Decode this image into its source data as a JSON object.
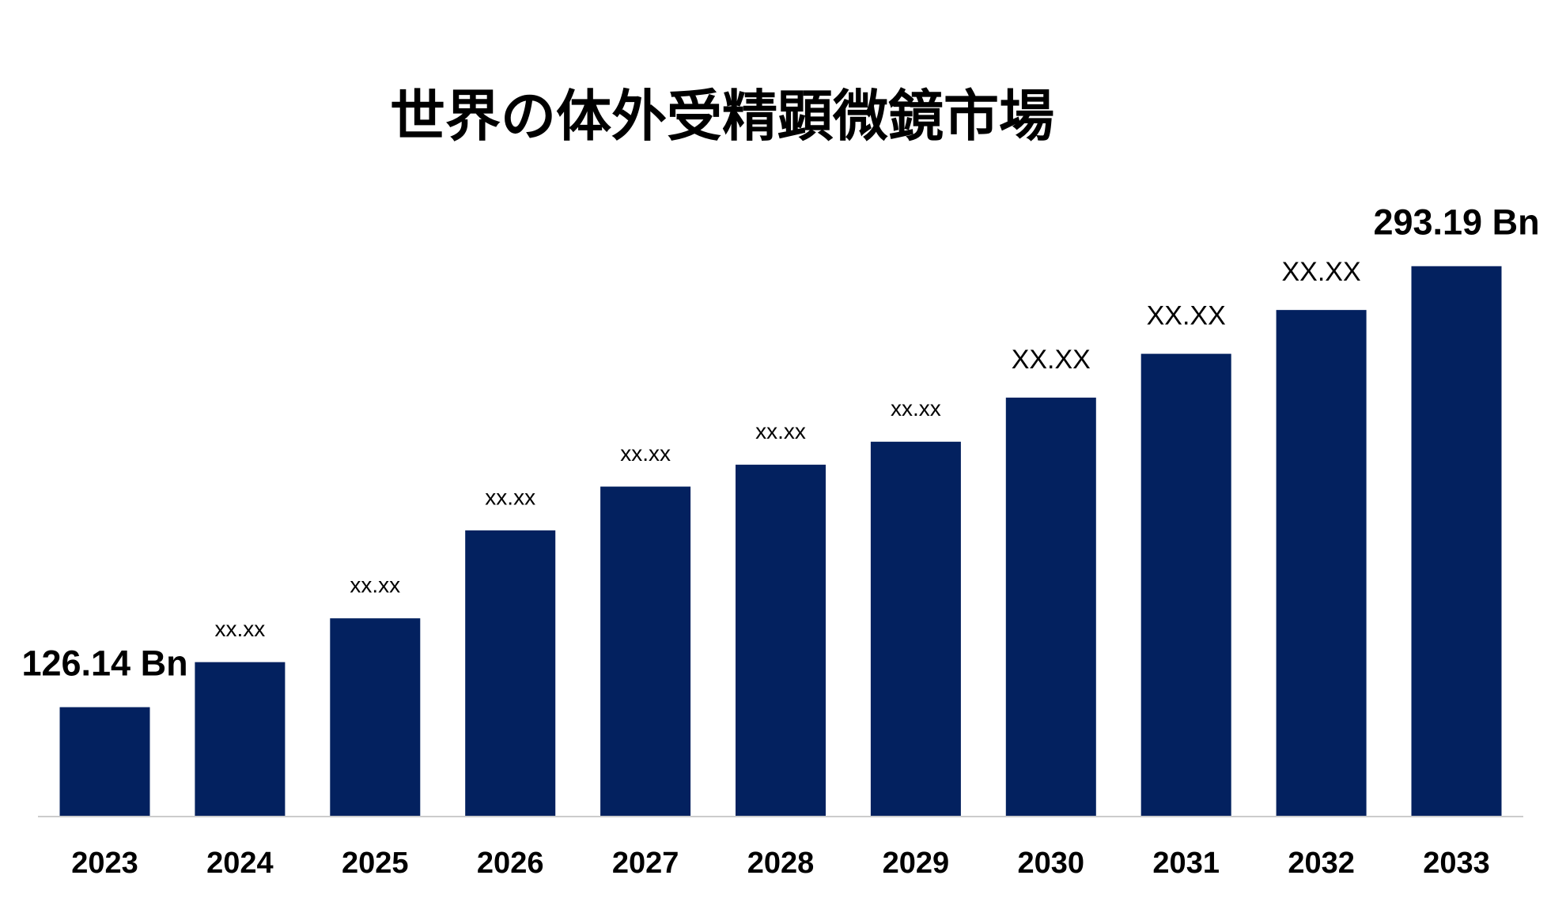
{
  "chart_data": {
    "type": "bar",
    "title": "世界の体外受精顕微鏡市場",
    "categories": [
      "2023",
      "2024",
      "2025",
      "2026",
      "2027",
      "2028",
      "2029",
      "2030",
      "2031",
      "2032",
      "2033"
    ],
    "values": [
      126.14,
      143.2,
      159.8,
      193.1,
      209.7,
      218.0,
      226.7,
      243.4,
      260.0,
      276.6,
      293.19
    ],
    "value_labels": [
      "126.14 Bn",
      "xx.xx",
      "xx.xx",
      "xx.xx",
      "xx.xx",
      "xx.xx",
      "xx.xx",
      "XX.XX",
      "XX.XX",
      "XX.XX",
      "293.19 Bn"
    ],
    "color": "#03215f",
    "ylim": [
      85,
      300
    ]
  }
}
